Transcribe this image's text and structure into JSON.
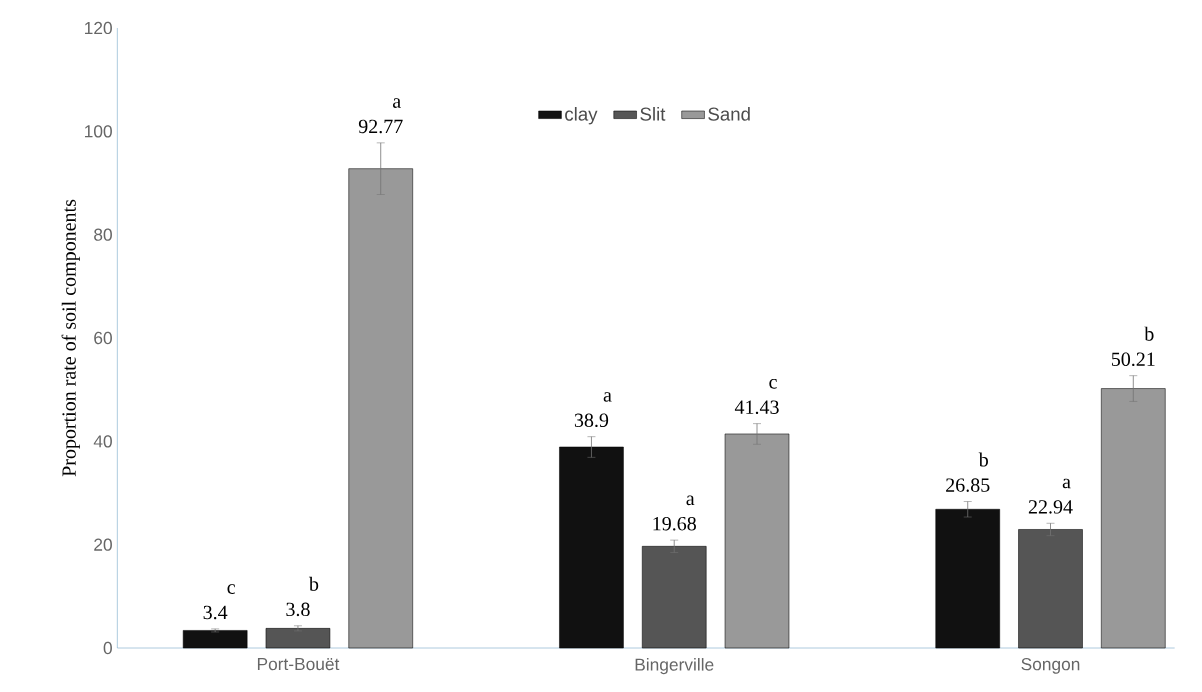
{
  "chart_data": {
    "type": "bar",
    "ylabel": "Proportion rate of soil components",
    "categories": [
      "Port-Bouët",
      "Bingerville",
      "Songon"
    ],
    "series": [
      {
        "name": "clay",
        "color": "#111111",
        "values": [
          3.4,
          38.9,
          26.85
        ],
        "errors": [
          0.3,
          2,
          1.5
        ]
      },
      {
        "name": "Slit",
        "color": "#555555",
        "values": [
          3.8,
          19.68,
          22.94
        ],
        "errors": [
          0.5,
          1.2,
          1.2
        ]
      },
      {
        "name": "Sand",
        "color": "#999999",
        "values": [
          92.77,
          41.43,
          50.21
        ],
        "errors": [
          5,
          2,
          2.5
        ]
      }
    ],
    "ylim": [
      0,
      120
    ],
    "yticks": [
      0,
      20,
      40,
      60,
      80,
      100,
      120
    ],
    "grid": false,
    "legend": "top",
    "data_labels": true,
    "annotations": [
      "c",
      "b",
      "a",
      "a",
      "a",
      "c",
      "b",
      "a",
      "b"
    ]
  }
}
